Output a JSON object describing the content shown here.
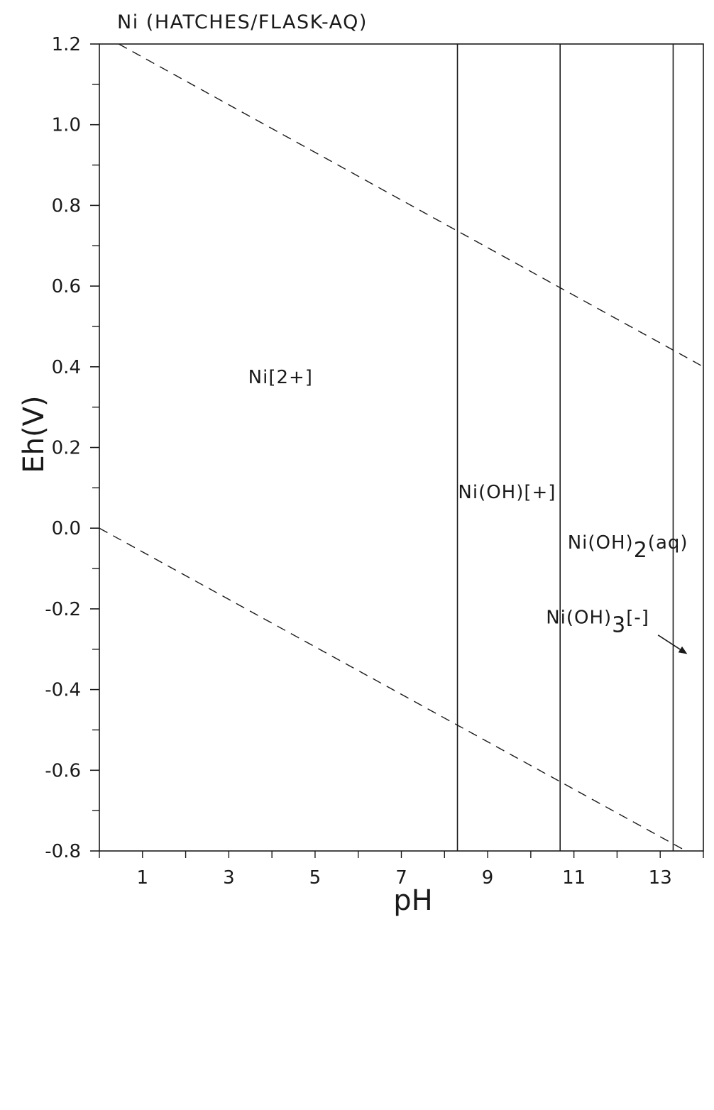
{
  "chart_data": {
    "type": "line",
    "title": "Ni (HATCHES/FLASK-AQ)",
    "xlabel": "pH",
    "ylabel": "Eh(V)",
    "xlim": [
      0,
      14
    ],
    "ylim": [
      -0.8,
      1.2
    ],
    "xticks_labeled": [
      "1",
      "3",
      "5",
      "7",
      "9",
      "11",
      "13"
    ],
    "xticks_labeled_values": [
      1,
      3,
      5,
      7,
      9,
      11,
      13
    ],
    "xticks_minor_values": [
      0,
      2,
      4,
      6,
      8,
      10,
      12,
      14
    ],
    "yticks_labeled": [
      "1.2",
      "1.0",
      "0.8",
      "0.6",
      "0.4",
      "0.2",
      "0.0",
      "-0.2",
      "-0.4",
      "-0.6",
      "-0.8"
    ],
    "yticks_labeled_values": [
      1.2,
      1.0,
      0.8,
      0.6,
      0.4,
      0.2,
      0.0,
      -0.2,
      -0.4,
      -0.6,
      -0.8
    ],
    "yticks_minor_values": [
      1.1,
      0.9,
      0.7,
      0.5,
      0.3,
      0.1,
      -0.1,
      -0.3,
      -0.5,
      -0.7
    ],
    "dashed_lines": [
      {
        "x": [
          0.45,
          14.0
        ],
        "y": [
          1.2,
          0.4
        ]
      },
      {
        "x": [
          0.0,
          13.6
        ],
        "y": [
          0.0,
          -0.8
        ]
      }
    ],
    "boundaries_x": [
      8.3,
      10.68,
      13.3
    ],
    "regions": [
      {
        "label": "Ni[2+]",
        "x": 4.2,
        "y": 0.375
      },
      {
        "label": "Ni(OH)[+]",
        "x": 9.45,
        "y": 0.09
      },
      {
        "label_main": "Ni(OH)",
        "label_sub": "2",
        "label_tail": "(aq)",
        "x": 12.25,
        "y": -0.035
      },
      {
        "label_main": "Ni(OH)",
        "label_sub": "3",
        "label_tail": "[-]",
        "x": 11.55,
        "y": -0.22
      }
    ],
    "arrow": {
      "from": [
        12.95,
        -0.265
      ],
      "to": [
        13.6,
        -0.31
      ]
    },
    "grid": false,
    "legend": "none"
  }
}
